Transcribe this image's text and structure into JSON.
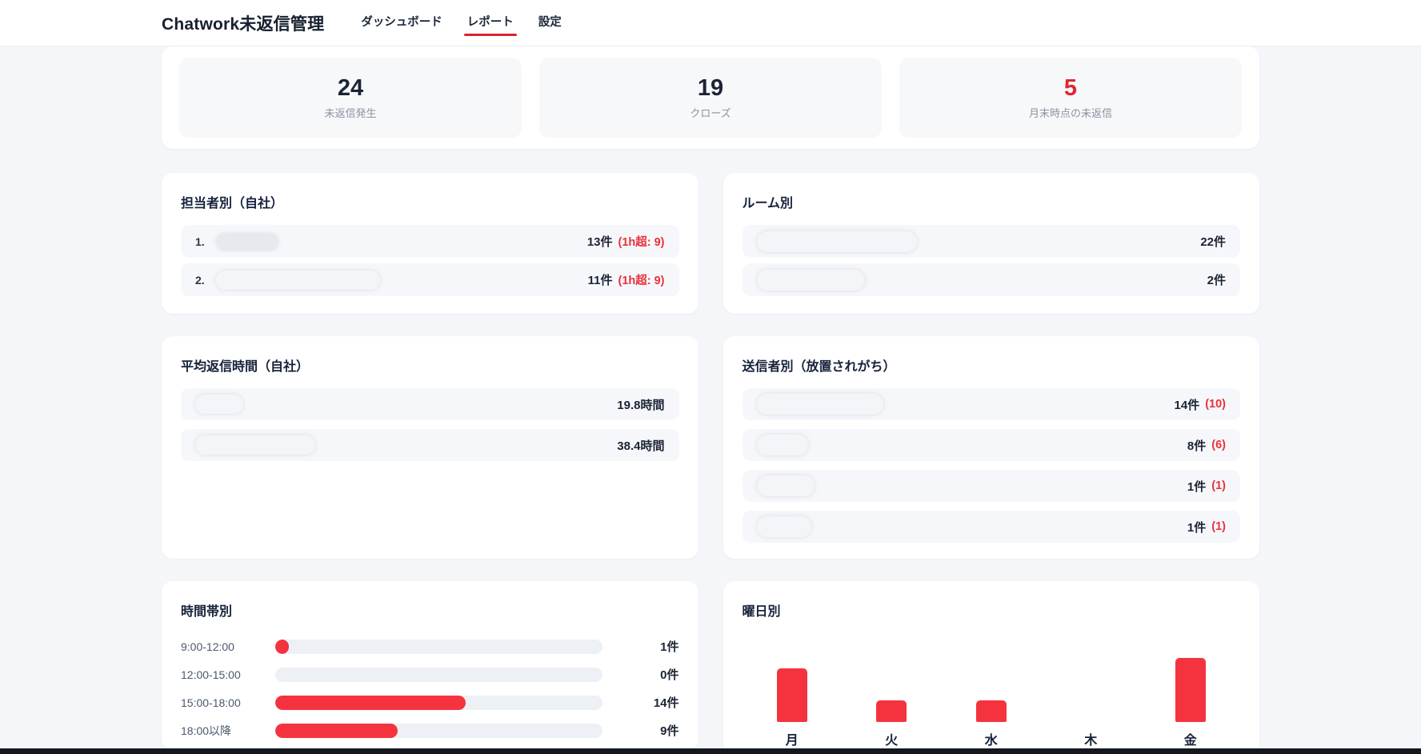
{
  "header": {
    "title": "Chatwork未返信管理",
    "nav": [
      {
        "label": "ダッシュボード",
        "active": false
      },
      {
        "label": "レポート",
        "active": true
      },
      {
        "label": "設定",
        "active": false
      }
    ]
  },
  "stats": [
    {
      "value": "24",
      "label": "未返信発生"
    },
    {
      "value": "19",
      "label": "クローズ"
    },
    {
      "value": "5",
      "label": "月末時点の未返信"
    }
  ],
  "cards": {
    "assignee": {
      "title": "担当者別（自社）",
      "rows": [
        {
          "index": "1.",
          "redacted": true,
          "value": "13件",
          "note": "(1h超: 9)"
        },
        {
          "index": "2.",
          "redacted": true,
          "value": "11件",
          "note": "(1h超: 9)"
        }
      ]
    },
    "room": {
      "title": "ルーム別",
      "rows": [
        {
          "redacted": true,
          "value": "22件"
        },
        {
          "redacted": true,
          "value": "2件"
        }
      ]
    },
    "avg_reply": {
      "title": "平均返信時間（自社）",
      "rows": [
        {
          "redacted": true,
          "value": "19.8時間"
        },
        {
          "redacted": true,
          "value": "38.4時間"
        }
      ]
    },
    "sender": {
      "title": "送信者別（放置されがち）",
      "rows": [
        {
          "redacted": true,
          "value": "14件",
          "note": "(10)"
        },
        {
          "redacted": true,
          "value": "8件",
          "note": "(6)"
        },
        {
          "redacted": true,
          "value": "1件",
          "note": "(1)"
        },
        {
          "redacted": true,
          "value": "1件",
          "note": "(1)"
        }
      ]
    },
    "timeband": {
      "title": "時間帯別"
    },
    "weekday": {
      "title": "曜日別"
    }
  },
  "chart_data": [
    {
      "type": "bar",
      "orientation": "horizontal",
      "title": "時間帯別",
      "categories": [
        "9:00-12:00",
        "12:00-15:00",
        "15:00-18:00",
        "18:00以降"
      ],
      "values": [
        1,
        0,
        14,
        9
      ],
      "values_display": [
        "1件",
        "0件",
        "14件",
        "9件"
      ],
      "max_scale": 24,
      "bar_color": "#f5333f",
      "track_color": "#edf0f4"
    },
    {
      "type": "bar",
      "orientation": "vertical",
      "title": "曜日別",
      "categories": [
        "月",
        "火",
        "水",
        "木",
        "金"
      ],
      "values": [
        5,
        2,
        2,
        0,
        6
      ],
      "values_display": [
        "5件",
        "2件",
        "2件",
        "0件",
        "6件"
      ],
      "ylim": [
        0,
        6
      ],
      "bar_color": "#f5333f"
    }
  ],
  "colors": {
    "accent_red": "#f5333f",
    "text_red": "#e8323c",
    "nav_underline_red": "#d7262e",
    "dark_navy": "#1b2433",
    "page_bg": "#f4f6f9",
    "row_bg": "#f6f7fa",
    "label_gray": "#8a93a2"
  }
}
